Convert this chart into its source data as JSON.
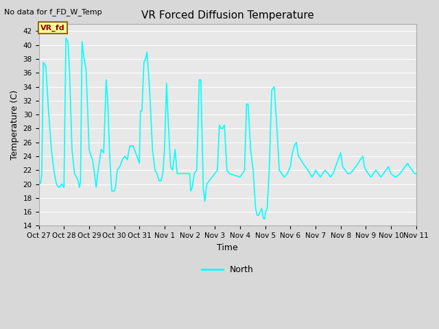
{
  "title": "VR Forced Diffusion Temperature",
  "top_left_text": "No data for f_FD_W_Temp",
  "xlabel": "Time",
  "ylabel": "Temperature (C)",
  "ylim": [
    14,
    43
  ],
  "yticks": [
    14,
    16,
    18,
    20,
    22,
    24,
    26,
    28,
    30,
    32,
    34,
    36,
    38,
    40,
    42
  ],
  "legend_label": "North",
  "line_color": "#00FFFF",
  "fig_bg_color": "#D8D8D8",
  "plot_bg_color": "#E8E8E8",
  "annotation_text": "VR_fd",
  "annotation_color": "#8B0000",
  "annotation_bg": "#FFFF99",
  "annotation_border": "#8B6914",
  "x_labels": [
    "Oct 27",
    "Oct 28",
    "Oct 29",
    "Oct 30",
    "Oct 31",
    "Nov 1",
    "Nov 2",
    "Nov 3",
    "Nov 4",
    "Nov 5",
    "Nov 6",
    "Nov 7",
    "Nov 8",
    "Nov 9",
    "Nov 10",
    "Nov 11"
  ],
  "key_points": [
    [
      0.0,
      21.0
    ],
    [
      0.04,
      20.0
    ],
    [
      0.08,
      20.2
    ],
    [
      0.12,
      21.5
    ],
    [
      0.18,
      37.5
    ],
    [
      0.28,
      37.0
    ],
    [
      0.38,
      31.0
    ],
    [
      0.5,
      25.0
    ],
    [
      0.6,
      22.0
    ],
    [
      0.7,
      20.0
    ],
    [
      0.8,
      19.5
    ],
    [
      0.92,
      20.0
    ],
    [
      1.0,
      19.5
    ],
    [
      1.08,
      41.0
    ],
    [
      1.16,
      40.5
    ],
    [
      1.22,
      36.5
    ],
    [
      1.32,
      25.0
    ],
    [
      1.42,
      21.5
    ],
    [
      1.5,
      21.0
    ],
    [
      1.56,
      20.5
    ],
    [
      1.62,
      19.5
    ],
    [
      1.66,
      20.5
    ],
    [
      1.72,
      40.5
    ],
    [
      1.8,
      38.0
    ],
    [
      1.88,
      36.5
    ],
    [
      1.95,
      30.0
    ],
    [
      2.0,
      25.0
    ],
    [
      2.08,
      24.0
    ],
    [
      2.14,
      23.5
    ],
    [
      2.2,
      22.0
    ],
    [
      2.28,
      19.5
    ],
    [
      2.36,
      22.0
    ],
    [
      2.48,
      25.0
    ],
    [
      2.58,
      24.5
    ],
    [
      2.68,
      35.0
    ],
    [
      2.74,
      32.0
    ],
    [
      2.82,
      24.0
    ],
    [
      2.9,
      19.0
    ],
    [
      3.0,
      19.0
    ],
    [
      3.05,
      19.5
    ],
    [
      3.12,
      22.0
    ],
    [
      3.22,
      22.5
    ],
    [
      3.32,
      23.5
    ],
    [
      3.42,
      24.0
    ],
    [
      3.52,
      23.5
    ],
    [
      3.62,
      25.5
    ],
    [
      3.75,
      25.5
    ],
    [
      4.0,
      23.0
    ],
    [
      4.04,
      30.5
    ],
    [
      4.1,
      30.5
    ],
    [
      4.18,
      37.5
    ],
    [
      4.24,
      38.0
    ],
    [
      4.3,
      39.0
    ],
    [
      4.4,
      34.0
    ],
    [
      4.52,
      25.0
    ],
    [
      4.62,
      22.0
    ],
    [
      4.7,
      21.5
    ],
    [
      4.78,
      20.5
    ],
    [
      4.86,
      20.5
    ],
    [
      4.93,
      21.5
    ],
    [
      5.0,
      25.0
    ],
    [
      5.08,
      34.5
    ],
    [
      5.14,
      29.5
    ],
    [
      5.24,
      22.5
    ],
    [
      5.32,
      22.0
    ],
    [
      5.42,
      25.0
    ],
    [
      5.5,
      21.5
    ],
    [
      6.0,
      21.5
    ],
    [
      6.04,
      19.0
    ],
    [
      6.1,
      19.5
    ],
    [
      6.18,
      21.5
    ],
    [
      6.28,
      22.0
    ],
    [
      6.38,
      35.0
    ],
    [
      6.44,
      35.0
    ],
    [
      6.54,
      19.5
    ],
    [
      6.6,
      17.5
    ],
    [
      6.68,
      20.0
    ],
    [
      6.78,
      20.5
    ],
    [
      7.0,
      21.5
    ],
    [
      7.1,
      22.0
    ],
    [
      7.18,
      28.5
    ],
    [
      7.24,
      28.0
    ],
    [
      7.3,
      28.0
    ],
    [
      7.38,
      28.5
    ],
    [
      7.48,
      22.0
    ],
    [
      7.58,
      21.5
    ],
    [
      8.0,
      21.0
    ],
    [
      8.1,
      21.5
    ],
    [
      8.18,
      22.0
    ],
    [
      8.26,
      31.5
    ],
    [
      8.32,
      31.5
    ],
    [
      8.42,
      25.0
    ],
    [
      8.52,
      22.0
    ],
    [
      8.62,
      16.5
    ],
    [
      8.68,
      15.5
    ],
    [
      8.74,
      15.5
    ],
    [
      8.8,
      16.0
    ],
    [
      8.86,
      16.5
    ],
    [
      8.9,
      15.5
    ],
    [
      8.94,
      15.0
    ],
    [
      8.98,
      15.0
    ],
    [
      9.02,
      16.0
    ],
    [
      9.08,
      16.5
    ],
    [
      9.16,
      22.0
    ],
    [
      9.26,
      33.5
    ],
    [
      9.36,
      34.0
    ],
    [
      9.46,
      28.5
    ],
    [
      9.56,
      22.0
    ],
    [
      9.66,
      21.5
    ],
    [
      9.76,
      21.0
    ],
    [
      9.88,
      21.5
    ],
    [
      10.0,
      22.5
    ],
    [
      10.08,
      24.5
    ],
    [
      10.16,
      25.5
    ],
    [
      10.24,
      26.0
    ],
    [
      10.32,
      24.0
    ],
    [
      10.42,
      23.5
    ],
    [
      10.5,
      23.0
    ],
    [
      10.6,
      22.5
    ],
    [
      10.7,
      22.0
    ],
    [
      10.78,
      21.5
    ],
    [
      10.86,
      21.0
    ],
    [
      10.95,
      21.5
    ],
    [
      11.0,
      22.0
    ],
    [
      11.1,
      21.5
    ],
    [
      11.2,
      21.0
    ],
    [
      11.28,
      21.5
    ],
    [
      11.38,
      22.0
    ],
    [
      11.5,
      21.5
    ],
    [
      11.6,
      21.0
    ],
    [
      11.7,
      21.5
    ],
    [
      11.8,
      22.5
    ],
    [
      11.9,
      23.5
    ],
    [
      11.95,
      24.0
    ],
    [
      12.0,
      24.5
    ],
    [
      12.08,
      22.5
    ],
    [
      12.18,
      22.0
    ],
    [
      12.28,
      21.5
    ],
    [
      12.38,
      21.5
    ],
    [
      12.5,
      22.0
    ],
    [
      12.6,
      22.5
    ],
    [
      12.7,
      23.0
    ],
    [
      12.78,
      23.5
    ],
    [
      12.88,
      24.0
    ],
    [
      12.95,
      22.5
    ],
    [
      13.0,
      22.0
    ],
    [
      13.1,
      21.5
    ],
    [
      13.2,
      21.0
    ],
    [
      13.3,
      21.5
    ],
    [
      13.4,
      22.0
    ],
    [
      13.5,
      21.5
    ],
    [
      13.6,
      21.0
    ],
    [
      13.7,
      21.5
    ],
    [
      13.8,
      22.0
    ],
    [
      13.9,
      22.5
    ],
    [
      14.0,
      21.5
    ],
    [
      14.1,
      21.2
    ],
    [
      14.18,
      21.0
    ],
    [
      14.26,
      21.2
    ],
    [
      14.36,
      21.5
    ],
    [
      14.46,
      22.0
    ],
    [
      14.56,
      22.5
    ],
    [
      14.66,
      23.0
    ],
    [
      14.74,
      22.5
    ],
    [
      14.84,
      22.0
    ],
    [
      14.93,
      21.5
    ],
    [
      15.0,
      21.5
    ]
  ]
}
